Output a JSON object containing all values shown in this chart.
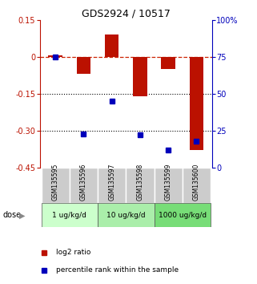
{
  "title": "GDS2924 / 10517",
  "samples": [
    "GSM135595",
    "GSM135596",
    "GSM135597",
    "GSM135598",
    "GSM135599",
    "GSM135600"
  ],
  "log2_ratio": [
    0.005,
    -0.07,
    0.09,
    -0.16,
    -0.05,
    -0.38
  ],
  "percentile_rank": [
    75,
    23,
    45,
    22,
    12,
    18
  ],
  "ylim_left": [
    -0.45,
    0.15
  ],
  "ylim_right": [
    0,
    100
  ],
  "yticks_left": [
    0.15,
    0.0,
    -0.15,
    -0.3,
    -0.45
  ],
  "yticks_right": [
    100,
    75,
    50,
    25,
    0
  ],
  "bar_color": "#bb1100",
  "dot_color": "#0000bb",
  "dose_colors": [
    "#ccffcc",
    "#aaeeaa",
    "#77dd77"
  ],
  "sample_bg_color": "#cccccc",
  "hline_color": "#cc2200",
  "dotted_line_color": "#000000",
  "bar_width": 0.5,
  "dose_groups": [
    [
      0,
      2,
      "1 ug/kg/d"
    ],
    [
      2,
      4,
      "10 ug/kg/d"
    ],
    [
      4,
      6,
      "1000 ug/kg/d"
    ]
  ]
}
